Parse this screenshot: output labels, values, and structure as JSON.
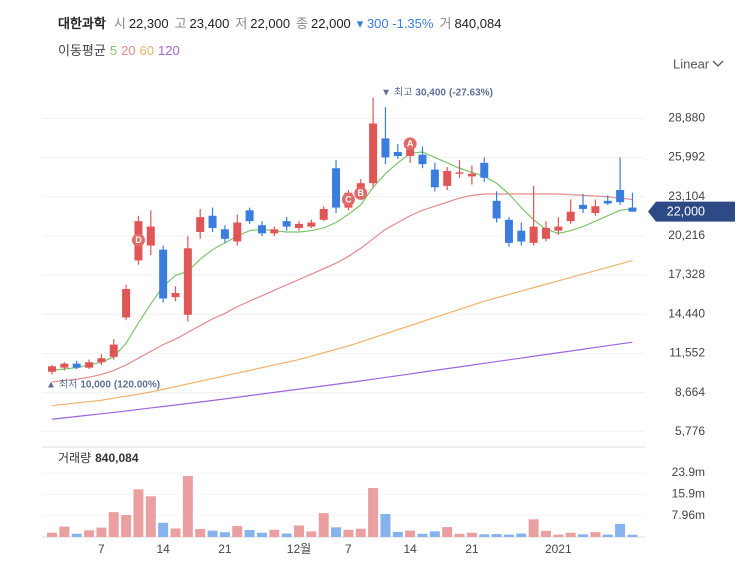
{
  "header": {
    "name": "대한과학",
    "fields": [
      {
        "label": "시",
        "value": "22,300"
      },
      {
        "label": "고",
        "value": "23,400"
      },
      {
        "label": "저",
        "value": "22,000"
      },
      {
        "label": "종",
        "value": "22,000"
      }
    ],
    "arrow": "▾",
    "change": "300",
    "change_pct": "-1.35%",
    "volume_label": "거",
    "volume": "840,084"
  },
  "scale_mode": "Linear",
  "chart_data": {
    "type": "candlestick",
    "up_color": "#e05656",
    "down_color": "#3b7ddd",
    "categories": [
      null,
      null,
      null,
      null,
      "7",
      null,
      null,
      null,
      null,
      "14",
      null,
      null,
      null,
      null,
      "21",
      null,
      null,
      null,
      null,
      null,
      "12월",
      null,
      null,
      null,
      "7",
      null,
      null,
      null,
      null,
      "14",
      null,
      null,
      null,
      null,
      "21",
      null,
      null,
      null,
      null,
      null,
      null,
      "2021",
      null,
      null,
      null,
      null,
      null,
      null
    ],
    "open": [
      10200,
      10500,
      10800,
      10500,
      10900,
      11300,
      14200,
      18400,
      19500,
      19200,
      15700,
      14400,
      20500,
      21700,
      20700,
      19800,
      22100,
      21000,
      20400,
      21300,
      20800,
      20900,
      21400,
      25200,
      22300,
      23300,
      24100,
      27400,
      26400,
      26100,
      26200,
      25100,
      23900,
      24800,
      24600,
      25600,
      22800,
      21400,
      20600,
      19700,
      20000,
      20600,
      21300,
      22500,
      21900,
      22800,
      23600,
      22300
    ],
    "high": [
      10700,
      10900,
      11000,
      11100,
      11500,
      12600,
      16600,
      21700,
      22100,
      19500,
      16500,
      20200,
      22200,
      22300,
      21000,
      21800,
      22300,
      21300,
      20900,
      21600,
      21300,
      21400,
      22400,
      25800,
      23600,
      24400,
      30400,
      29700,
      27000,
      27300,
      26800,
      25600,
      25300,
      25800,
      25400,
      26000,
      23500,
      21600,
      21200,
      23900,
      21300,
      21600,
      22900,
      23300,
      22900,
      23200,
      26000,
      23400
    ],
    "low": [
      10000,
      10300,
      10400,
      10400,
      10700,
      11100,
      14000,
      18100,
      18800,
      15300,
      15400,
      13900,
      20000,
      20500,
      19700,
      19500,
      21100,
      20200,
      20200,
      20600,
      20600,
      20800,
      21300,
      21900,
      22100,
      23100,
      23800,
      25500,
      25900,
      25600,
      25200,
      23500,
      23600,
      24500,
      24000,
      24200,
      21200,
      19400,
      19500,
      19500,
      19800,
      20300,
      21100,
      21900,
      21700,
      22500,
      22500,
      22000
    ],
    "close": [
      10600,
      10800,
      10500,
      10900,
      11200,
      12200,
      16300,
      21300,
      20900,
      15600,
      16000,
      19300,
      21600,
      20800,
      20000,
      21200,
      21300,
      20400,
      20700,
      20900,
      21100,
      21200,
      22200,
      22300,
      23400,
      24100,
      28500,
      26000,
      26100,
      26600,
      25500,
      23800,
      25000,
      24900,
      24800,
      24500,
      21500,
      19700,
      19800,
      20900,
      20800,
      20900,
      22000,
      22200,
      22400,
      22600,
      22700,
      22000
    ],
    "ma_title": "이동평균",
    "series": [
      {
        "name": "5",
        "color": "#7cc66b",
        "values": [
          10300,
          10400,
          10500,
          10700,
          10900,
          11300,
          12300,
          13800,
          15200,
          16500,
          17300,
          17600,
          18500,
          19200,
          19700,
          20200,
          20600,
          20700,
          20600,
          20500,
          20500,
          20600,
          20800,
          21200,
          21800,
          22500,
          23800,
          24800,
          25600,
          26300,
          26400,
          26000,
          25600,
          25200,
          24900,
          24600,
          24100,
          23300,
          22300,
          21400,
          20700,
          20400,
          20600,
          20900,
          21300,
          21700,
          22100,
          22200
        ]
      },
      {
        "name": "20",
        "color": "#e48a8a",
        "values": [
          9450,
          9550,
          9650,
          9800,
          10000,
          10300,
          10700,
          11200,
          11700,
          12200,
          12600,
          13100,
          13600,
          14100,
          14500,
          15000,
          15400,
          15800,
          16200,
          16600,
          17000,
          17400,
          17800,
          18200,
          18700,
          19300,
          20000,
          20700,
          21200,
          21700,
          22100,
          22400,
          22700,
          23000,
          23200,
          23300,
          23300,
          23300,
          23300,
          23300,
          23300,
          23300,
          23250,
          23200,
          23150,
          23100,
          23000,
          22900
        ]
      },
      {
        "name": "60",
        "color": "#f0b26a",
        "values": [
          7700,
          7800,
          7900,
          8000,
          8100,
          8250,
          8400,
          8550,
          8700,
          8900,
          9100,
          9300,
          9500,
          9700,
          9900,
          10100,
          10300,
          10500,
          10700,
          10900,
          11100,
          11350,
          11600,
          11850,
          12100,
          12400,
          12700,
          13000,
          13300,
          13600,
          13900,
          14200,
          14500,
          14800,
          15100,
          15400,
          15650,
          15900,
          16150,
          16400,
          16650,
          16900,
          17150,
          17400,
          17650,
          17900,
          18150,
          18400
        ]
      },
      {
        "name": "120",
        "color": "#a066d8",
        "values": [
          6700,
          6800,
          6900,
          7000,
          7100,
          7200,
          7310,
          7420,
          7530,
          7640,
          7750,
          7860,
          7970,
          8080,
          8200,
          8320,
          8440,
          8560,
          8680,
          8800,
          8920,
          9040,
          9160,
          9280,
          9400,
          9520,
          9650,
          9780,
          9910,
          10040,
          10170,
          10300,
          10430,
          10560,
          10690,
          10820,
          10950,
          11080,
          11210,
          11340,
          11470,
          11600,
          11730,
          11860,
          11990,
          12120,
          12250,
          12380
        ]
      }
    ],
    "ylim": [
      4800,
      30600
    ],
    "yticks": [
      {
        "value": 28880,
        "label": "28,880"
      },
      {
        "value": 25992,
        "label": "25,992"
      },
      {
        "value": 23104,
        "label": "23,104"
      },
      {
        "value": 20216,
        "label": "20,216"
      },
      {
        "value": 17328,
        "label": "17,328"
      },
      {
        "value": 14440,
        "label": "14,440"
      },
      {
        "value": 11552,
        "label": "11,552"
      },
      {
        "value": 8664,
        "label": "8,664"
      },
      {
        "value": 5776,
        "label": "5,776"
      }
    ],
    "grid": true,
    "last_price": {
      "value": 22000,
      "label": "22,000"
    },
    "high_note": {
      "marker": "▼",
      "name": "최고",
      "value": 30400,
      "label": "30,400",
      "change": "(-27.63%)",
      "category": 26
    },
    "low_note": {
      "marker": "▲",
      "name": "최저",
      "value": 10000,
      "label": "10,000",
      "change": "(120.00%)",
      "category": 0
    },
    "markers": [
      {
        "text": "A",
        "category": 29,
        "value": 27000
      },
      {
        "text": "B",
        "category": 25,
        "value": 23350
      },
      {
        "text": "C",
        "category": 24,
        "value": 22900
      },
      {
        "text": "D",
        "category": 7,
        "value": 19900
      }
    ],
    "volume": {
      "title": "거래량",
      "total": "840,084",
      "values": [
        1.6,
        3.9,
        1.2,
        2.5,
        3.5,
        9.3,
        8.2,
        17.8,
        15.2,
        5.3,
        3.2,
        22.8,
        3.0,
        2.4,
        1.8,
        4.1,
        2.6,
        1.6,
        2.7,
        1.3,
        4.3,
        2.1,
        8.9,
        3.6,
        2.7,
        3.1,
        18.3,
        8.6,
        1.9,
        2.4,
        1.2,
        2.1,
        3.7,
        1.2,
        1.6,
        1.0,
        1.1,
        0.9,
        1.3,
        6.6,
        2.3,
        0.9,
        1.6,
        1.0,
        1.8,
        0.9,
        4.9,
        0.84
      ],
      "up_color": "#eaa0a0",
      "down_color": "#86b3ee",
      "ylim": [
        0,
        30.6
      ],
      "yticks": [
        {
          "value": 23.9,
          "label": "23.9m"
        },
        {
          "value": 15.9,
          "label": "15.9m"
        },
        {
          "value": 7.96,
          "label": "7.96m"
        }
      ]
    }
  }
}
